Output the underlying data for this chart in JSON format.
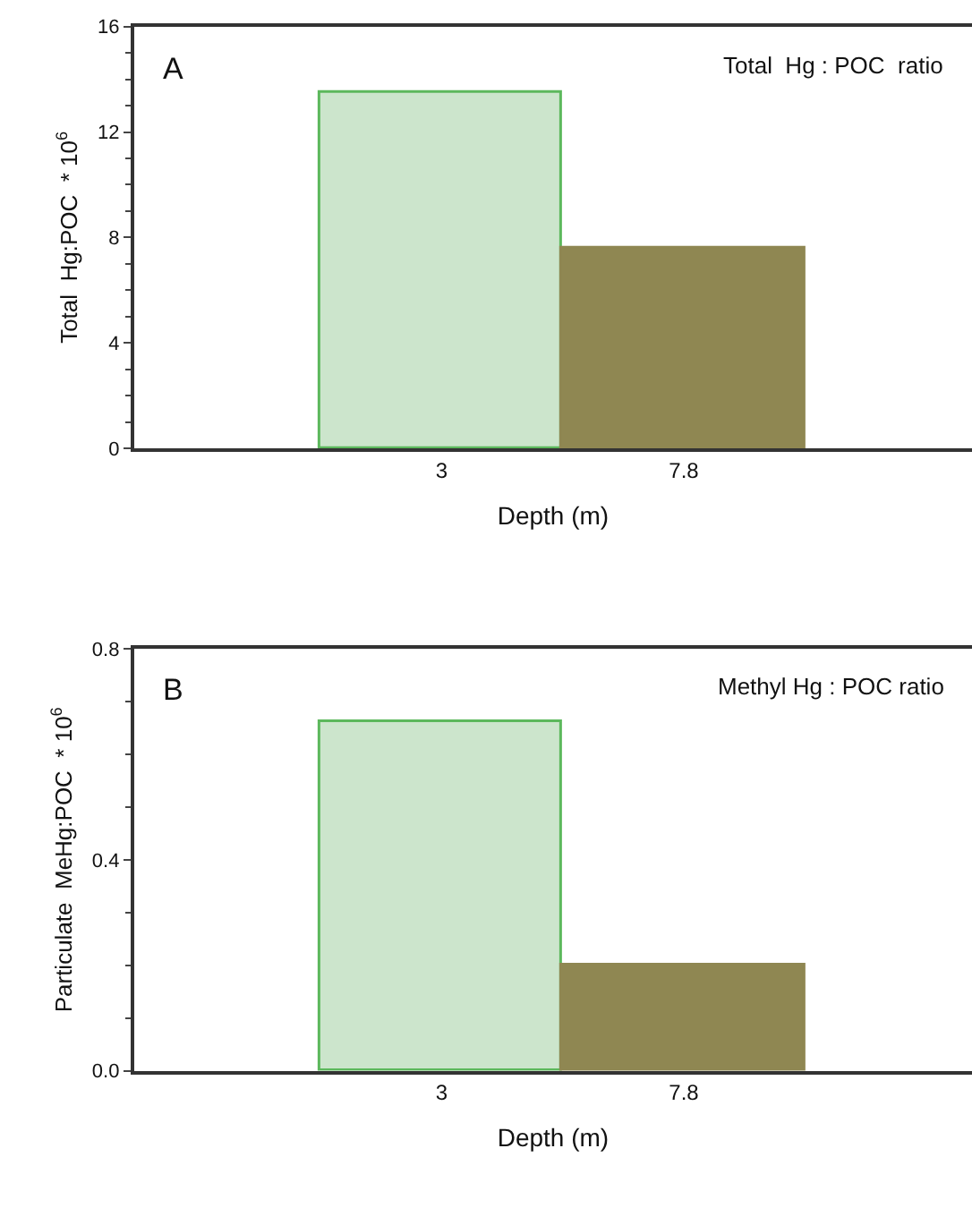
{
  "chart_data": [
    {
      "type": "bar",
      "categories": [
        "3",
        "7.8"
      ],
      "values": [
        13.5,
        7.6
      ],
      "colors": [
        "#cce5cc",
        "#8f8752"
      ],
      "xlabel": "Depth (m)",
      "ylabel": "Total  Hg:POC  * 10$^{6}$",
      "ylim": [
        0,
        16
      ],
      "yticks": [
        0,
        4,
        8,
        12,
        16
      ],
      "annotations": [
        "A",
        "Total  Hg : POC  ratio"
      ]
    },
    {
      "type": "bar",
      "categories": [
        "3",
        "7.8"
      ],
      "values": [
        0.66,
        0.2
      ],
      "colors": [
        "#cce5cc",
        "#8f8752"
      ],
      "xlabel": "Depth (m)",
      "ylabel": "Particulate  MeHg:POC  * 10$^{6}$",
      "ylim": [
        0,
        0.8
      ],
      "yticks": [
        {
          "value": 0,
          "label": "0.0"
        },
        0.4,
        0.8
      ],
      "annotations": [
        "B",
        "Methyl Hg : POC ratio"
      ]
    }
  ]
}
